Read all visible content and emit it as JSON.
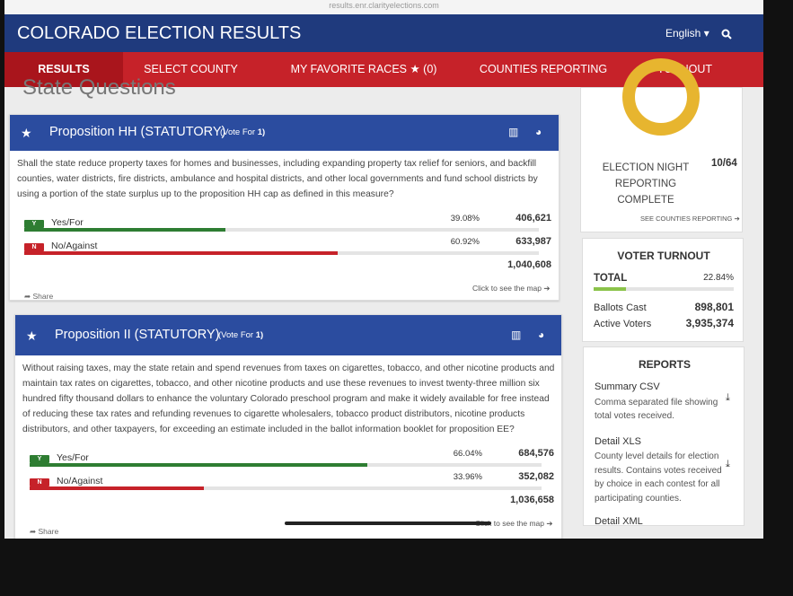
{
  "browser": {
    "url": "results.enr.clarityelections.com"
  },
  "header": {
    "title": "COLORADO ELECTION RESULTS",
    "language": "English"
  },
  "nav": {
    "items": [
      "RESULTS",
      "SELECT COUNTY",
      "MY FAVORITE RACES",
      "COUNTIES REPORTING",
      "TURNOUT"
    ],
    "favorites_count": "(0)"
  },
  "section": {
    "title": "State Questions"
  },
  "contests": [
    {
      "title": "Proposition HH (STATUTORY)",
      "vote_for_label": "(Vote For",
      "vote_for": "1)",
      "description": "Shall the state reduce property taxes for homes and businesses, including expanding property tax relief for seniors, and backfill counties, water districts, fire districts, ambulance and hospital districts, and other local governments and fund school districts by using a portion of the state surplus up to the proposition HH cap as defined in this measure?",
      "choices": [
        {
          "badge": "Y",
          "name": "Yes/For",
          "percent": 39.08,
          "percent_label": "39.08%",
          "votes": "406,621"
        },
        {
          "badge": "N",
          "name": "No/Against",
          "percent": 60.92,
          "percent_label": "60.92%",
          "votes": "633,987"
        }
      ],
      "total": "1,040,608",
      "map_link": "Click to see the map",
      "share": "Share"
    },
    {
      "title": "Proposition II (STATUTORY)",
      "vote_for_label": "(Vote For",
      "vote_for": "1)",
      "description": "Without raising taxes, may the state retain and spend revenues from taxes on cigarettes, tobacco, and other nicotine products and maintain tax rates on cigarettes, tobacco, and other nicotine products and use these revenues to invest twenty-three million six hundred fifty thousand dollars to enhance the voluntary Colorado preschool program and make it widely available for free instead of reducing these tax rates and refunding revenues to cigarette wholesalers, tobacco product distributors, nicotine products distributors, and other taxpayers, for exceeding an estimate included in the ballot information booklet for proposition EE?",
      "choices": [
        {
          "badge": "Y",
          "name": "Yes/For",
          "percent": 66.04,
          "percent_label": "66.04%",
          "votes": "684,576"
        },
        {
          "badge": "N",
          "name": "No/Against",
          "percent": 33.96,
          "percent_label": "33.96%",
          "votes": "352,082"
        }
      ],
      "total": "1,036,658",
      "map_link": "Click to see the map",
      "share": "Share"
    }
  ],
  "reporting": {
    "label": "ELECTION NIGHT REPORTING COMPLETE",
    "count": "10/64",
    "link": "SEE COUNTIES REPORTING"
  },
  "turnout": {
    "title": "VOTER TURNOUT",
    "total_label": "TOTAL",
    "percent": 22.84,
    "percent_label": "22.84%",
    "ballots_label": "Ballots Cast",
    "ballots": "898,801",
    "voters_label": "Active Voters",
    "voters": "3,935,374"
  },
  "reports": {
    "title": "REPORTS",
    "items": [
      {
        "name": "Summary CSV",
        "description": "Comma separated file showing total votes received."
      },
      {
        "name": "Detail XLS",
        "description": "County level details for election results. Contains votes received by choice in each contest for all participating counties."
      },
      {
        "name": "Detail XML"
      }
    ]
  }
}
